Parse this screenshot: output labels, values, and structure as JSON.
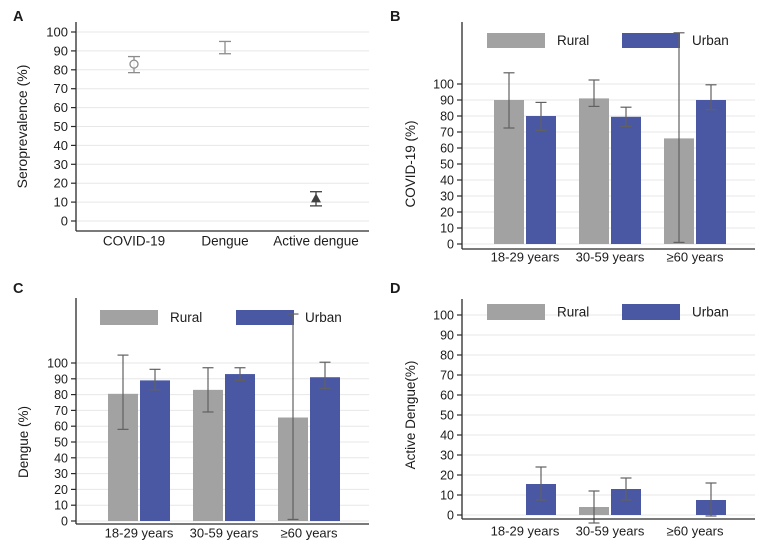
{
  "figure": {
    "background": "#ffffff",
    "layout": "2x2-grid"
  },
  "colors": {
    "rural": "#a2a2a2",
    "urban": "#4a58a4",
    "grid": "#e7e7e7",
    "axis": "#2a2a2a",
    "text": "#1c1c1c",
    "error_bar": "#616161",
    "scatter_gray": "#8c8c8c",
    "scatter_dark": "#404040"
  },
  "chart_data": [
    {
      "id": "A",
      "letter": "A",
      "type": "scatter",
      "title": "",
      "ylabel": "Seroprevalence (%)",
      "xlabel": "",
      "ylim": [
        0,
        100
      ],
      "ytick_step": 10,
      "grid": true,
      "legend": null,
      "categories": [
        "COVID-19",
        "Dengue",
        "Active dengue"
      ],
      "points": [
        {
          "category": "COVID-19",
          "value": 83,
          "ci_low": 78.5,
          "ci_high": 87,
          "marker": "open-circle",
          "color_key": "scatter_gray"
        },
        {
          "category": "Dengue",
          "value": 91.5,
          "ci_low": 88.5,
          "ci_high": 95,
          "marker": "none",
          "color_key": "scatter_gray"
        },
        {
          "category": "Active dengue",
          "value": 12,
          "ci_low": 8,
          "ci_high": 15.5,
          "marker": "filled-triangle",
          "color_key": "scatter_dark"
        }
      ]
    },
    {
      "id": "B",
      "letter": "B",
      "type": "bar",
      "title": "",
      "ylabel": "COVID-19 (%)",
      "xlabel": "",
      "ylim": [
        0,
        100
      ],
      "ytick_step": 10,
      "grid": true,
      "legend_position": "top-inside",
      "categories": [
        "18-29 years",
        "30-59 years",
        "≥60 years"
      ],
      "series": [
        {
          "name": "Rural",
          "color_key": "rural",
          "values": [
            90,
            91,
            66
          ],
          "ci_low": [
            72.5,
            86,
            1
          ],
          "ci_high": [
            107,
            102.5,
            132
          ]
        },
        {
          "name": "Urban",
          "color_key": "urban",
          "values": [
            80,
            79.5,
            90
          ],
          "ci_low": [
            71,
            73.5,
            84
          ],
          "ci_high": [
            88.5,
            85.5,
            99.5
          ]
        }
      ]
    },
    {
      "id": "C",
      "letter": "C",
      "type": "bar",
      "title": "",
      "ylabel": "Dengue (%)",
      "xlabel": "",
      "ylim": [
        0,
        100
      ],
      "ytick_step": 10,
      "grid": true,
      "legend_position": "top-inside",
      "categories": [
        "18-29 years",
        "30-59 years",
        "≥60 years"
      ],
      "series": [
        {
          "name": "Rural",
          "color_key": "rural",
          "values": [
            80.5,
            83,
            65.5
          ],
          "ci_low": [
            58,
            69,
            1
          ],
          "ci_high": [
            105,
            97,
            131
          ]
        },
        {
          "name": "Urban",
          "color_key": "urban",
          "values": [
            89,
            93,
            91
          ],
          "ci_low": [
            83,
            89,
            84
          ],
          "ci_high": [
            96,
            97,
            100.5
          ]
        }
      ]
    },
    {
      "id": "D",
      "letter": "D",
      "type": "bar",
      "title": "",
      "ylabel": "Active Dengue(%)",
      "xlabel": "",
      "ylim": [
        0,
        100
      ],
      "ytick_step": 10,
      "grid": true,
      "legend_position": "top-inside",
      "categories": [
        "18-29 years",
        "30-59 years",
        "≥60 years"
      ],
      "series": [
        {
          "name": "Rural",
          "color_key": "rural",
          "values": [
            0,
            4,
            0
          ],
          "ci_low": [
            null,
            -4,
            null
          ],
          "ci_high": [
            null,
            12,
            null
          ]
        },
        {
          "name": "Urban",
          "color_key": "urban",
          "values": [
            15.5,
            13,
            7.5
          ],
          "ci_low": [
            7.5,
            7.5,
            -0.5
          ],
          "ci_high": [
            24,
            18.5,
            16
          ]
        }
      ]
    }
  ]
}
